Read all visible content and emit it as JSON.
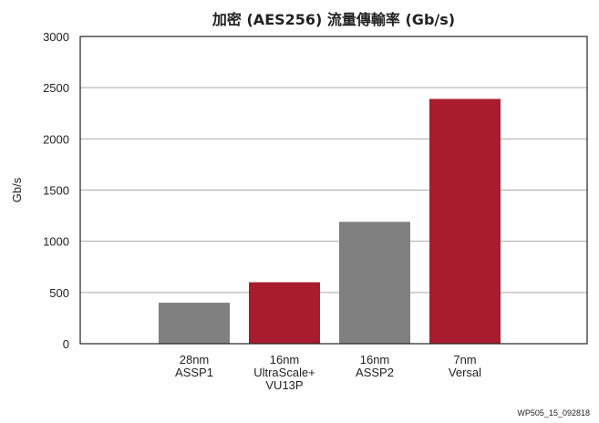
{
  "chart_data": {
    "type": "bar",
    "title": "加密 (AES256) 流量傳輸率 (Gb/s)",
    "ylabel": "Gb/s",
    "xlabel": "",
    "ylim": [
      0,
      3000
    ],
    "yticks": [
      0,
      500,
      1000,
      1500,
      2000,
      2500,
      3000
    ],
    "grid": true,
    "categories": [
      [
        "28nm",
        "ASSP1"
      ],
      [
        "16nm",
        "UltraScale+",
        "VU13P"
      ],
      [
        "16nm",
        "ASSP2"
      ],
      [
        "7nm",
        "Versal"
      ]
    ],
    "values": [
      400,
      600,
      1190,
      2390
    ],
    "bar_colors": [
      "#808080",
      "#a81c2e",
      "#808080",
      "#a81c2e"
    ]
  },
  "footnote": "WP505_15_092818"
}
